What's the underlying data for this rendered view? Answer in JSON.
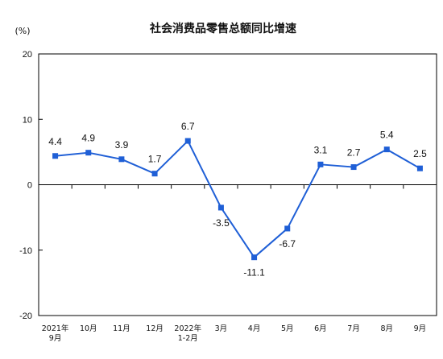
{
  "chart_data": {
    "type": "line",
    "title": "社会消费品零售总额同比增速",
    "unit_label": "(%)",
    "xlabel": "",
    "ylabel": "",
    "categories": [
      [
        "2021年",
        "9月"
      ],
      [
        "10月"
      ],
      [
        "11月"
      ],
      [
        "12月"
      ],
      [
        "2022年",
        "1-2月"
      ],
      [
        "3月"
      ],
      [
        "4月"
      ],
      [
        "5月"
      ],
      [
        "6月"
      ],
      [
        "7月"
      ],
      [
        "8月"
      ],
      [
        "9月"
      ]
    ],
    "series": [
      {
        "values": [
          4.4,
          4.9,
          3.9,
          1.7,
          6.7,
          -3.5,
          -11.1,
          -6.7,
          3.1,
          2.7,
          5.4,
          2.5
        ],
        "labels": [
          "4.4",
          "4.9",
          "3.9",
          "1.7",
          "6.7",
          "-3.5",
          "-11.1",
          "-6.7",
          "3.1",
          "2.7",
          "5.4",
          "2.5"
        ],
        "label_side": [
          "above",
          "above",
          "above",
          "above",
          "above",
          "below",
          "below",
          "below",
          "above",
          "above",
          "above",
          "above"
        ]
      }
    ],
    "ylim": [
      -20,
      20
    ],
    "yticks": [
      20,
      10,
      0,
      -10,
      -20
    ],
    "ytick_labels": [
      "20",
      "10",
      "0",
      "-10",
      "-20"
    ],
    "grid": false,
    "legend": "none",
    "colors": {
      "line": "#1f5fd6",
      "marker": "#1f5fd6",
      "axis": "#000000"
    }
  }
}
